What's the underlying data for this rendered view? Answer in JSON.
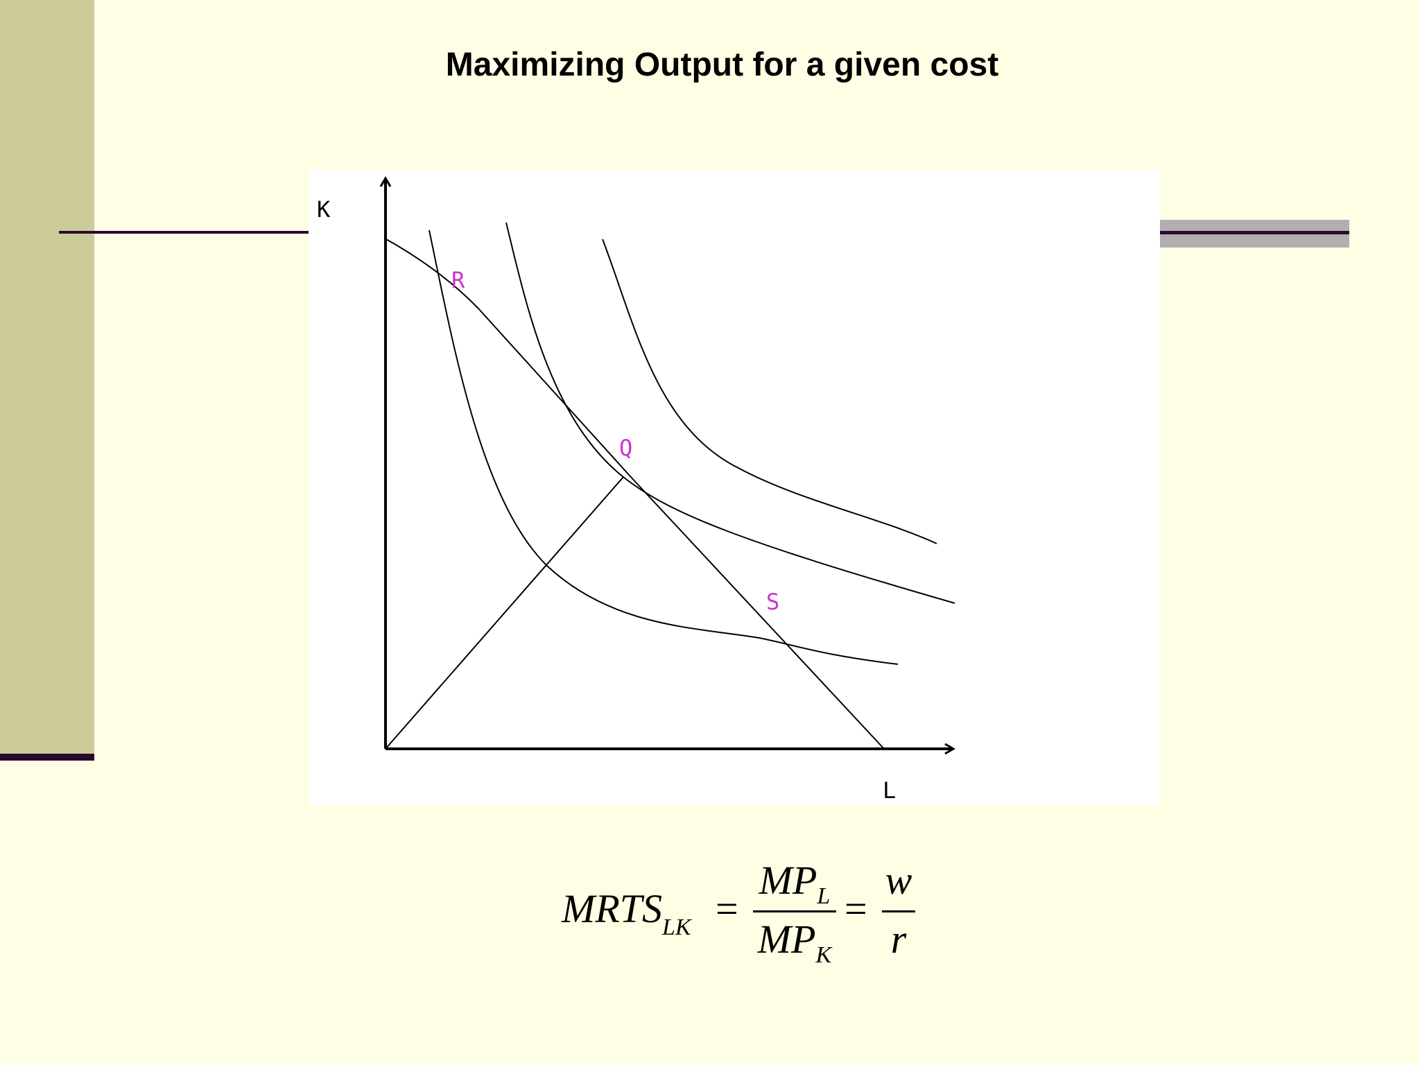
{
  "slide": {
    "title": "Maximizing Output for a given cost"
  },
  "diagram": {
    "axis_labels": {
      "y": "K",
      "x": "L"
    },
    "point_labels": {
      "R": "R",
      "Q": "Q",
      "S": "S"
    },
    "colors": {
      "axes": "#000000",
      "curves": "#000000",
      "point_labels": "#cc33cc"
    }
  },
  "formula": {
    "lhs_main": "MRTS",
    "lhs_sub": "LK",
    "eq1": "=",
    "f1_num_main": "MP",
    "f1_num_sub": "L",
    "f1_den_main": "MP",
    "f1_den_sub": "K",
    "eq2": "=",
    "f2_num": "w",
    "f2_den": "r"
  }
}
